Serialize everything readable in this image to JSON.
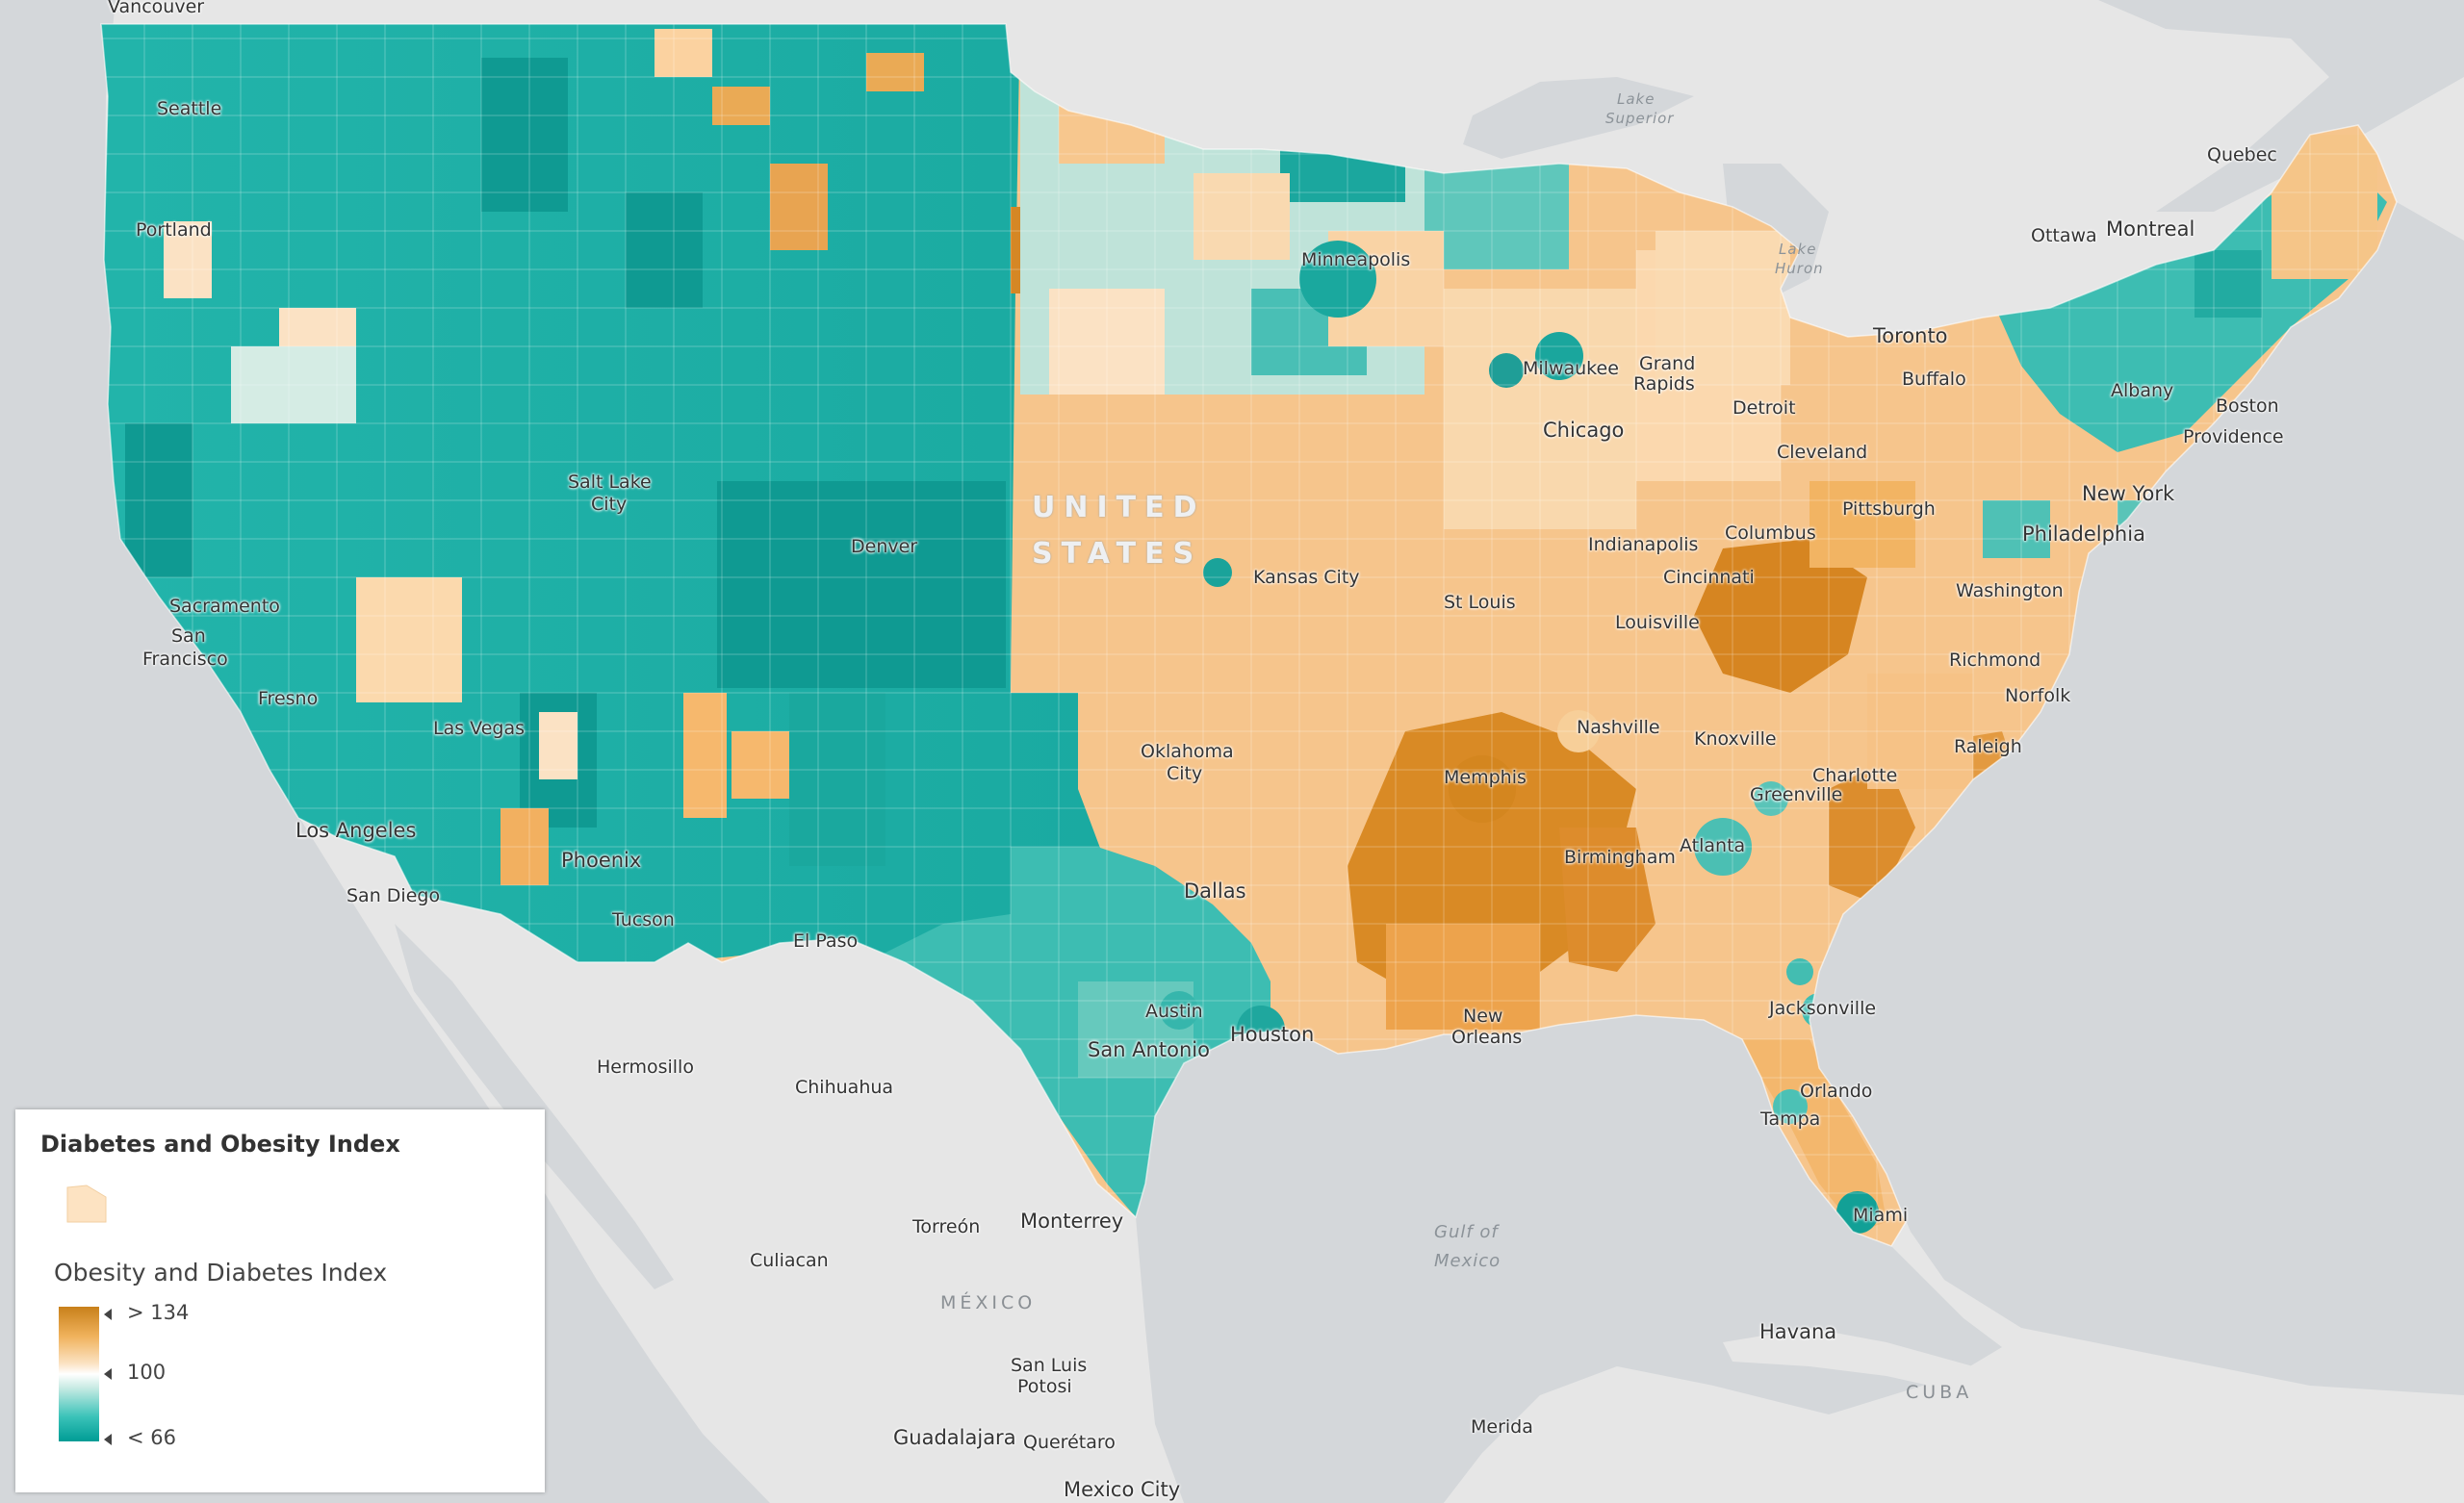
{
  "legend": {
    "title": "Diabetes and Obesity Index",
    "field_label": "Obesity and Diabetes Index",
    "high_label": "> 134",
    "mid_label": "100",
    "low_label": "< 66",
    "colors": {
      "high": "#c8801a",
      "mid": "#ffffff",
      "low": "#009c95",
      "swatch": "#fde3c2"
    }
  },
  "basemap": {
    "cities": {
      "vancouver": "Vancouver",
      "seattle": "Seattle",
      "portland": "Portland",
      "sacramento": "Sacramento",
      "san_francisco_1": "San",
      "san_francisco_2": "Francisco",
      "fresno": "Fresno",
      "las_vegas": "Las Vegas",
      "los_angeles": "Los Angeles",
      "san_diego": "San Diego",
      "phoenix": "Phoenix",
      "tucson": "Tucson",
      "salt_lake_city_1": "Salt Lake",
      "salt_lake_city_2": "City",
      "denver": "Denver",
      "el_paso": "El Paso",
      "minneapolis": "Minneapolis",
      "kansas_city": "Kansas City",
      "st_louis": "St Louis",
      "oklahoma_city_1": "Oklahoma",
      "oklahoma_city_2": "City",
      "dallas": "Dallas",
      "austin": "Austin",
      "san_antonio": "San Antonio",
      "houston": "Houston",
      "new_orleans_1": "New",
      "new_orleans_2": "Orleans",
      "memphis": "Memphis",
      "nashville": "Nashville",
      "birmingham": "Birmingham",
      "atlanta": "Atlanta",
      "milwaukee": "Milwaukee",
      "chicago": "Chicago",
      "grand_rapids_1": "Grand",
      "grand_rapids_2": "Rapids",
      "detroit": "Detroit",
      "indianapolis": "Indianapolis",
      "columbus": "Columbus",
      "cincinnati": "Cincinnati",
      "louisville": "Louisville",
      "knoxville": "Knoxville",
      "greenville": "Greenville",
      "charlotte": "Charlotte",
      "raleigh": "Raleigh",
      "jacksonville": "Jacksonville",
      "orlando": "Orlando",
      "tampa": "Tampa",
      "miami": "Miami",
      "cleveland": "Cleveland",
      "pittsburgh": "Pittsburgh",
      "washington": "Washington",
      "richmond": "Richmond",
      "norfolk": "Norfolk",
      "philadelphia": "Philadelphia",
      "new_york": "New York",
      "albany": "Albany",
      "boston": "Boston",
      "providence": "Providence",
      "buffalo": "Buffalo",
      "toronto": "Toronto",
      "ottawa": "Ottawa",
      "montreal": "Montreal",
      "quebec": "Quebec",
      "hermosillo": "Hermosillo",
      "chihuahua": "Chihuahua",
      "culiacan": "Culiacan",
      "torreon": "Torreón",
      "monterrey": "Monterrey",
      "san_luis_potosi_1": "San Luis",
      "san_luis_potosi_2": "Potosi",
      "guadalajara": "Guadalajara",
      "queretaro": "Querétaro",
      "mexico_city": "Mexico City",
      "merida": "Merida",
      "havana": "Havana"
    },
    "water": {
      "lake_superior_1": "Lake",
      "lake_superior_2": "Superior",
      "lake_huron_1": "Lake",
      "lake_huron_2": "Huron",
      "gulf_1": "Gulf of",
      "gulf_2": "Mexico"
    },
    "countries": {
      "us_1": "UNITED",
      "us_2": "STATES",
      "mexico": "MÉXICO",
      "cuba": "CUBA"
    }
  }
}
